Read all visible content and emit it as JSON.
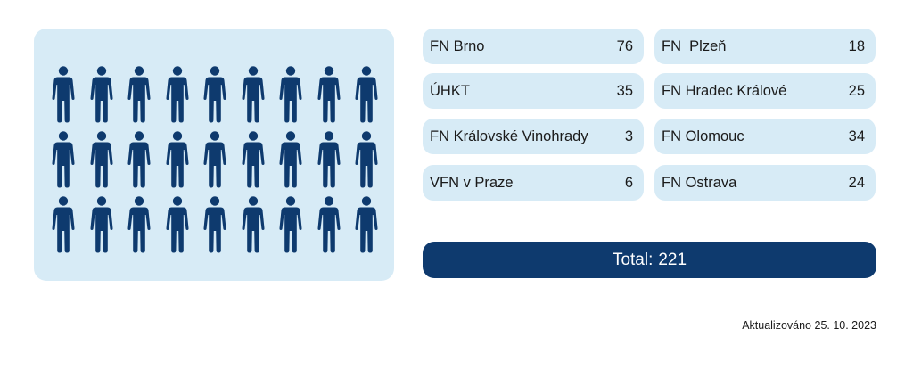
{
  "colors": {
    "panel": "#d7ebf6",
    "person_icon": "#0e3a6e",
    "total_bar": "#0e3a6e"
  },
  "people": {
    "icon": "person-icon",
    "rows": 3,
    "per_row": 9
  },
  "hospitals": [
    {
      "name": "FN Brno",
      "value": "76"
    },
    {
      "name": "FN  Plzeň",
      "value": "18"
    },
    {
      "name": "ÚHKT",
      "value": "35"
    },
    {
      "name": "FN Hradec Králové",
      "value": "25"
    },
    {
      "name": "FN Královské Vinohrady",
      "value": "3"
    },
    {
      "name": "FN Olomouc",
      "value": "34"
    },
    {
      "name": "VFN v Praze",
      "value": "6"
    },
    {
      "name": "FN Ostrava",
      "value": "24"
    }
  ],
  "total": {
    "label": "Total:",
    "value": "221"
  },
  "updated": "Aktualizováno 25. 10. 2023"
}
